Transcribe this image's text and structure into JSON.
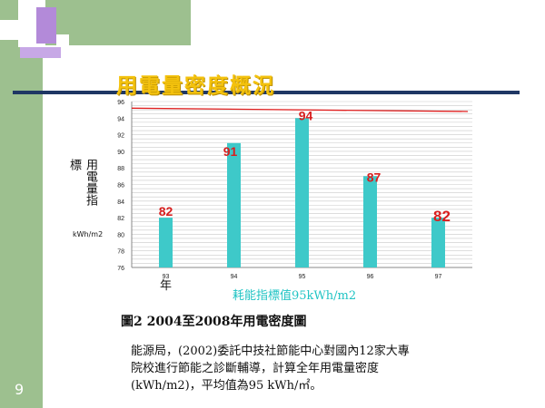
{
  "slide": {
    "title": "用電量密度概況",
    "ylabel_col1": "用電量指",
    "ylabel_col2": "標",
    "unit": "kWh/m2",
    "xlabel": "年",
    "reference_note": "耗能指標值95kWh/m2",
    "caption": "圖2 2004至2008年用電密度圖",
    "body_lines": [
      "能源局，(2002)委託中技社節能中心對國內12家大專",
      "院校進行節能之診斷輔導，計算全年用電量密度",
      "(kWh/m2)，平均值為95 kWh/㎡。"
    ],
    "page_number": "9"
  },
  "colors": {
    "bar": "#3ec9c9",
    "data_label": "#d81e1e",
    "reference_line": "#e02020",
    "title": "#f4c20d",
    "note": "#21c4c4",
    "band": "#9dc08f"
  },
  "chart_data": {
    "type": "bar",
    "categories": [
      "93",
      "94",
      "95",
      "96",
      "97"
    ],
    "values": [
      82,
      91,
      94,
      87,
      82
    ],
    "data_labels": [
      "82",
      "91",
      "94",
      "87",
      "82"
    ],
    "yticks": [
      76,
      78,
      80,
      82,
      84,
      86,
      88,
      90,
      92,
      94,
      96
    ],
    "ylim": [
      76,
      96
    ],
    "reference_line": {
      "start": 95.2,
      "end": 94.8
    },
    "grid": true,
    "legend": "none"
  }
}
